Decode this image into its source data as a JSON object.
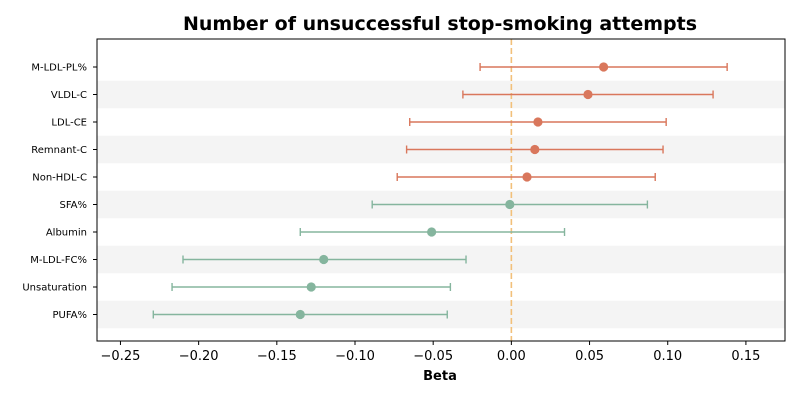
{
  "chart_data": {
    "type": "forest",
    "title": "Number of unsuccessful stop-smoking attempts",
    "xlabel": "Beta",
    "ylabel": "",
    "xlim": [
      -0.265,
      0.175
    ],
    "xticks": [
      -0.25,
      -0.2,
      -0.15,
      -0.1,
      -0.05,
      0.0,
      0.05,
      0.1,
      0.15
    ],
    "xtick_labels": [
      "−0.25",
      "−0.20",
      "−0.15",
      "−0.10",
      "−0.05",
      "0.00",
      "0.05",
      "0.10",
      "0.15"
    ],
    "reference_line": 0.0,
    "row_banding": true,
    "colors": {
      "positive": "#d9775c",
      "negative": "#85b59e",
      "reference": "#f2c07a",
      "band": "#f4f4f4"
    },
    "rows": [
      {
        "label": "M-LDL-PL%",
        "beta": 0.059,
        "ci_low": -0.02,
        "ci_high": 0.138
      },
      {
        "label": "VLDL-C",
        "beta": 0.049,
        "ci_low": -0.031,
        "ci_high": 0.129
      },
      {
        "label": "LDL-CE",
        "beta": 0.017,
        "ci_low": -0.065,
        "ci_high": 0.099
      },
      {
        "label": "Remnant-C",
        "beta": 0.015,
        "ci_low": -0.067,
        "ci_high": 0.097
      },
      {
        "label": "Non-HDL-C",
        "beta": 0.01,
        "ci_low": -0.073,
        "ci_high": 0.092
      },
      {
        "label": "SFA%",
        "beta": -0.001,
        "ci_low": -0.089,
        "ci_high": 0.087
      },
      {
        "label": "Albumin",
        "beta": -0.051,
        "ci_low": -0.135,
        "ci_high": 0.034
      },
      {
        "label": "M-LDL-FC%",
        "beta": -0.12,
        "ci_low": -0.21,
        "ci_high": -0.029
      },
      {
        "label": "Unsaturation",
        "beta": -0.128,
        "ci_low": -0.217,
        "ci_high": -0.039
      },
      {
        "label": "PUFA%",
        "beta": -0.135,
        "ci_low": -0.229,
        "ci_high": -0.041
      }
    ]
  }
}
